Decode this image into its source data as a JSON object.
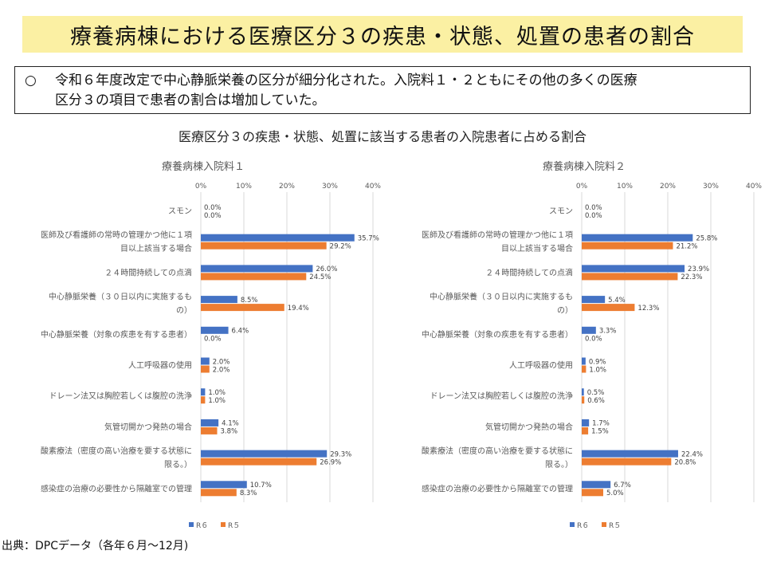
{
  "slide_title": "療養病棟における医療区分３の疾患・状態、処置の患者の割合",
  "summary": {
    "bullet": "○",
    "line1": "令和６年度改定で中心静脈栄養の区分が細分化された。入院料１・２ともにその他の多くの医療",
    "line2": "区分３の項目で患者の割合は増加していた。"
  },
  "chart_title": "医療区分３の疾患・状態、処置に該当する患者の入院患者に占める割合",
  "source": "出典：DPCデータ（各年６月～12月)",
  "colors": {
    "R6": "#4472c4",
    "R5": "#ed7d31",
    "grid": "#d9d9d9"
  },
  "chart_data": [
    {
      "type": "bar",
      "orientation": "horizontal",
      "title": "療養病棟入院料１",
      "categories": [
        [
          "スモン"
        ],
        [
          "医師及び看護師の常時の管理かつ他に１項",
          "目以上該当する場合"
        ],
        [
          "２４時間持続しての点滴"
        ],
        [
          "中心静脈栄養（３０日以内に実施するも",
          "の）"
        ],
        [
          "中心静脈栄養（対象の疾患を有する患者）"
        ],
        [
          "人工呼吸器の使用"
        ],
        [
          "ドレーン法又は胸腔若しくは腹腔の洗浄"
        ],
        [
          "気管切開かつ発熱の場合"
        ],
        [
          "酸素療法（密度の高い治療を要する状態に",
          "限る。）"
        ],
        [
          "感染症の治療の必要性から隔離室での管理"
        ]
      ],
      "series": [
        {
          "name": "R６",
          "values": [
            0.0,
            35.7,
            26.0,
            8.5,
            6.4,
            2.0,
            1.0,
            4.1,
            29.3,
            10.7
          ],
          "labels": [
            "0.0%",
            "35.7%",
            "26.0%",
            "8.5%",
            "6.4%",
            "2.0%",
            "1.0%",
            "4.1%",
            "29.3%",
            "10.7%"
          ]
        },
        {
          "name": "R５",
          "values": [
            0.0,
            29.2,
            24.5,
            19.4,
            0.0,
            2.0,
            1.0,
            3.8,
            26.9,
            8.3
          ],
          "labels": [
            "0.0%",
            "29.2%",
            "24.5%",
            "19.4%",
            "0.0%",
            "2.0%",
            "1.0%",
            "3.8%",
            "26.9%",
            "8.3%"
          ]
        }
      ],
      "xlim": [
        0,
        40
      ],
      "ticks": [
        "0%",
        "10%",
        "20%",
        "30%",
        "40%"
      ],
      "grid": true,
      "legend": "bottom"
    },
    {
      "type": "bar",
      "orientation": "horizontal",
      "title": "療養病棟入院料２",
      "categories": [
        [
          "スモン"
        ],
        [
          "医師及び看護師の常時の管理かつ他に１項",
          "目以上該当する場合"
        ],
        [
          "２４時間持続しての点滴"
        ],
        [
          "中心静脈栄養（３０日以内に実施するも",
          "の）"
        ],
        [
          "中心静脈栄養（対象の疾患を有する患者）"
        ],
        [
          "人工呼吸器の使用"
        ],
        [
          "ドレーン法又は胸腔若しくは腹腔の洗浄"
        ],
        [
          "気管切開かつ発熱の場合"
        ],
        [
          "酸素療法（密度の高い治療を要する状態に",
          "限る。）"
        ],
        [
          "感染症の治療の必要性から隔離室での管理"
        ]
      ],
      "series": [
        {
          "name": "R６",
          "values": [
            0.0,
            25.8,
            23.9,
            5.4,
            3.3,
            0.9,
            0.5,
            1.7,
            22.4,
            6.7
          ],
          "labels": [
            "0.0%",
            "25.8%",
            "23.9%",
            "5.4%",
            "3.3%",
            "0.9%",
            "0.5%",
            "1.7%",
            "22.4%",
            "6.7%"
          ]
        },
        {
          "name": "R５",
          "values": [
            0.0,
            21.2,
            22.3,
            12.3,
            0.0,
            1.0,
            0.6,
            1.5,
            20.8,
            5.0
          ],
          "labels": [
            "0.0%",
            "21.2%",
            "22.3%",
            "12.3%",
            "0.0%",
            "1.0%",
            "0.6%",
            "1.5%",
            "20.8%",
            "5.0%"
          ]
        }
      ],
      "xlim": [
        0,
        40
      ],
      "ticks": [
        "0%",
        "10%",
        "20%",
        "30%",
        "40%"
      ],
      "grid": true,
      "legend": "bottom"
    }
  ]
}
